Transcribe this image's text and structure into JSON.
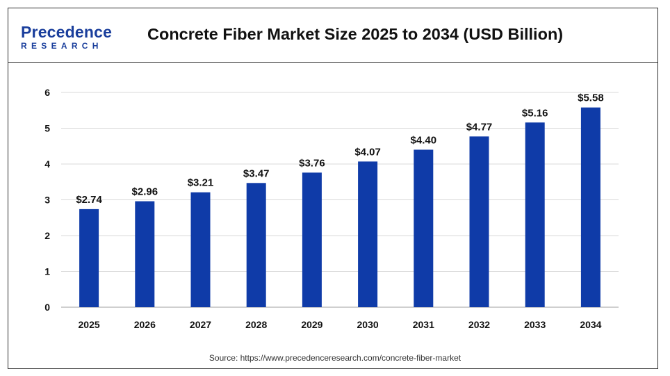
{
  "header": {
    "logo_main": "Precedence",
    "logo_sub": "RESEARCH",
    "title": "Concrete Fiber Market Size 2025 to 2034 (USD Billion)"
  },
  "source": "Source: https://www.precedenceresearch.com/concrete-fiber-market",
  "colors": {
    "bar": "#0f3ba8",
    "brand": "#1a3e9c",
    "grid": "#d9d9d9",
    "text": "#111111"
  },
  "chart_data": {
    "type": "bar",
    "title": "Concrete Fiber Market Size 2025 to 2034 (USD Billion)",
    "categories": [
      "2025",
      "2026",
      "2027",
      "2028",
      "2029",
      "2030",
      "2031",
      "2032",
      "2033",
      "2034"
    ],
    "values": [
      2.74,
      2.96,
      3.21,
      3.47,
      3.76,
      4.07,
      4.4,
      4.77,
      5.16,
      5.58
    ],
    "data_labels": [
      "$2.74",
      "$2.96",
      "$3.21",
      "$3.47",
      "$3.76",
      "$4.07",
      "$4.40",
      "$4.77",
      "$5.16",
      "$5.58"
    ],
    "yticks": [
      "0",
      "1",
      "2",
      "3",
      "4",
      "5",
      "6"
    ],
    "ylim": [
      0,
      6
    ],
    "grid": true,
    "xlabel": "",
    "ylabel": ""
  }
}
